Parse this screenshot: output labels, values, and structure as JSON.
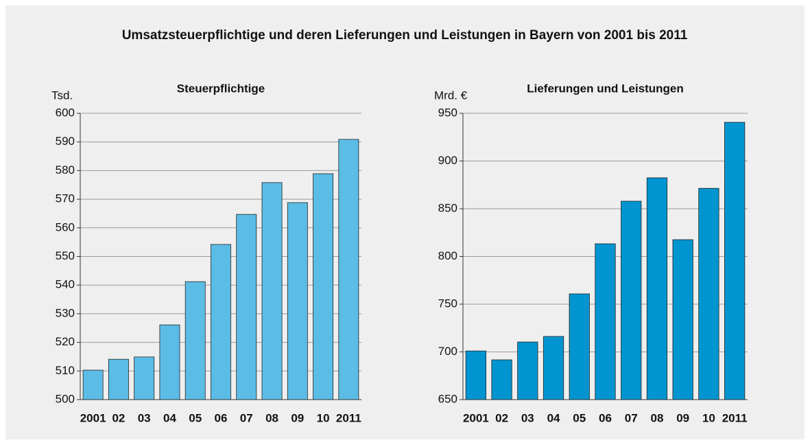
{
  "title": "Umsatzsteuerpflichtige und deren Lieferungen und Leistungen in Bayern von 2001 bis 2011",
  "chart_data": [
    {
      "type": "bar",
      "title": "Steuerpflichtige",
      "y_label": "Tsd.",
      "categories": [
        "2001",
        "02",
        "03",
        "04",
        "05",
        "06",
        "07",
        "08",
        "09",
        "10",
        "2011"
      ],
      "values": [
        510.3,
        514.1,
        514.9,
        526.1,
        541.2,
        554.2,
        564.7,
        575.8,
        568.8,
        578.9,
        590.9
      ],
      "color": "#5bbde6",
      "ylim": [
        500,
        600
      ],
      "yticks": [
        500,
        510,
        520,
        530,
        540,
        550,
        560,
        570,
        580,
        590,
        600
      ],
      "grid": true
    },
    {
      "type": "bar",
      "title": "Lieferungen und Leistungen",
      "y_label": "Mrd. €",
      "categories": [
        "2001",
        "02",
        "03",
        "04",
        "05",
        "06",
        "07",
        "08",
        "09",
        "10",
        "2011"
      ],
      "values": [
        701,
        691.7,
        710.4,
        716.2,
        760.8,
        813.3,
        857.9,
        882.4,
        817.6,
        871.4,
        940.6
      ],
      "color": "#0095d0",
      "ylim": [
        650,
        950
      ],
      "yticks": [
        650,
        700,
        750,
        800,
        850,
        900,
        950
      ],
      "grid": true
    }
  ]
}
